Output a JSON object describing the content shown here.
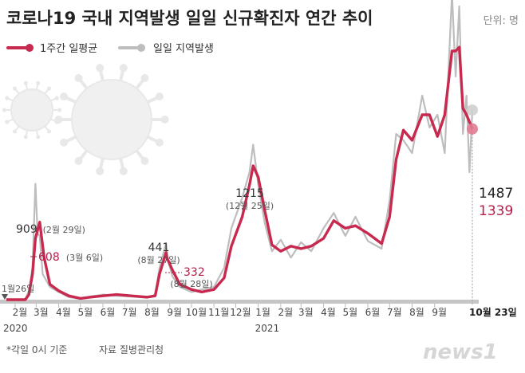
{
  "title": "코로나19 국내 지역발생 일일 신규확진자 연간 추이",
  "unit": "단위: 명",
  "footnote": "*각일 0시 기준",
  "source": "자료 질병관리청",
  "brand": "news1",
  "colors": {
    "avg_line": "#c8294f",
    "daily_line": "#bdbdbd",
    "avg_label": "#b51e47",
    "baseline": "#c6c6c6",
    "virus": "#e6e6e6"
  },
  "chart_data": {
    "type": "line",
    "title": "코로나19 국내 지역발생 일일 신규확진자 연간 추이",
    "x_range": [
      "2020-01-20",
      "2021-10-23"
    ],
    "ylim": [
      0,
      1900
    ],
    "grid": false,
    "legend": {
      "position": "top-left",
      "entries": [
        "1주간 일평균",
        "일일 지역발생"
      ]
    },
    "month_ticks": [
      {
        "label": "2월",
        "date": "2020-02-01"
      },
      {
        "label": "3월",
        "date": "2020-03-01"
      },
      {
        "label": "4월",
        "date": "2020-04-01"
      },
      {
        "label": "5월",
        "date": "2020-05-01"
      },
      {
        "label": "6월",
        "date": "2020-06-01"
      },
      {
        "label": "7월",
        "date": "2020-07-01"
      },
      {
        "label": "8월",
        "date": "2020-08-01"
      },
      {
        "label": "9월",
        "date": "2020-09-01"
      },
      {
        "label": "10월",
        "date": "2020-10-01"
      },
      {
        "label": "11월",
        "date": "2020-11-01"
      },
      {
        "label": "12월",
        "date": "2020-12-01"
      },
      {
        "label": "1월",
        "date": "2021-01-01"
      },
      {
        "label": "2월",
        "date": "2021-02-01"
      },
      {
        "label": "3월",
        "date": "2021-03-01"
      },
      {
        "label": "4월",
        "date": "2021-04-01"
      },
      {
        "label": "5월",
        "date": "2021-05-01"
      },
      {
        "label": "6월",
        "date": "2021-06-01"
      },
      {
        "label": "7월",
        "date": "2021-07-01"
      },
      {
        "label": "8월",
        "date": "2021-08-01"
      },
      {
        "label": "9월",
        "date": "2021-09-01"
      }
    ],
    "year_labels": [
      {
        "label": "2020",
        "date": "2020-01-20"
      },
      {
        "label": "2021",
        "date": "2021-01-01"
      }
    ],
    "end_label": "10월 23일",
    "series": [
      {
        "name": "1주간 일평균",
        "points": [
          [
            "2020-01-20",
            0
          ],
          [
            "2020-02-15",
            0
          ],
          [
            "2020-02-20",
            40
          ],
          [
            "2020-02-25",
            200
          ],
          [
            "2020-02-29",
            480
          ],
          [
            "2020-03-06",
            608
          ],
          [
            "2020-03-12",
            330
          ],
          [
            "2020-03-20",
            120
          ],
          [
            "2020-04-01",
            70
          ],
          [
            "2020-04-15",
            30
          ],
          [
            "2020-05-01",
            10
          ],
          [
            "2020-05-15",
            20
          ],
          [
            "2020-06-01",
            30
          ],
          [
            "2020-06-20",
            40
          ],
          [
            "2020-07-10",
            30
          ],
          [
            "2020-08-01",
            20
          ],
          [
            "2020-08-12",
            30
          ],
          [
            "2020-08-18",
            200
          ],
          [
            "2020-08-27",
            370
          ],
          [
            "2020-08-28",
            332
          ],
          [
            "2020-09-05",
            230
          ],
          [
            "2020-09-15",
            120
          ],
          [
            "2020-10-01",
            80
          ],
          [
            "2020-10-15",
            60
          ],
          [
            "2020-11-01",
            80
          ],
          [
            "2020-11-15",
            170
          ],
          [
            "2020-11-25",
            420
          ],
          [
            "2020-12-10",
            650
          ],
          [
            "2020-12-20",
            900
          ],
          [
            "2020-12-25",
            1050
          ],
          [
            "2021-01-01",
            960
          ],
          [
            "2021-01-10",
            700
          ],
          [
            "2021-01-20",
            430
          ],
          [
            "2021-02-01",
            380
          ],
          [
            "2021-02-15",
            420
          ],
          [
            "2021-03-01",
            400
          ],
          [
            "2021-03-15",
            420
          ],
          [
            "2021-04-01",
            480
          ],
          [
            "2021-04-15",
            620
          ],
          [
            "2021-05-01",
            560
          ],
          [
            "2021-05-15",
            580
          ],
          [
            "2021-06-01",
            520
          ],
          [
            "2021-06-20",
            440
          ],
          [
            "2021-07-01",
            650
          ],
          [
            "2021-07-10",
            1100
          ],
          [
            "2021-07-20",
            1330
          ],
          [
            "2021-08-01",
            1250
          ],
          [
            "2021-08-15",
            1450
          ],
          [
            "2021-08-25",
            1450
          ],
          [
            "2021-09-05",
            1280
          ],
          [
            "2021-09-15",
            1450
          ],
          [
            "2021-09-25",
            1950
          ],
          [
            "2021-09-30",
            1950
          ],
          [
            "2021-10-05",
            1980
          ],
          [
            "2021-10-10",
            1500
          ],
          [
            "2021-10-15",
            1450
          ],
          [
            "2021-10-23",
            1339
          ]
        ]
      },
      {
        "name": "일일 지역발생",
        "points": [
          [
            "2020-01-20",
            0
          ],
          [
            "2020-02-15",
            0
          ],
          [
            "2020-02-20",
            70
          ],
          [
            "2020-02-25",
            250
          ],
          [
            "2020-02-29",
            909
          ],
          [
            "2020-03-03",
            520
          ],
          [
            "2020-03-06",
            500
          ],
          [
            "2020-03-10",
            200
          ],
          [
            "2020-03-20",
            100
          ],
          [
            "2020-04-01",
            60
          ],
          [
            "2020-04-15",
            20
          ],
          [
            "2020-05-01",
            5
          ],
          [
            "2020-05-15",
            25
          ],
          [
            "2020-06-01",
            40
          ],
          [
            "2020-06-20",
            30
          ],
          [
            "2020-07-10",
            25
          ],
          [
            "2020-08-01",
            15
          ],
          [
            "2020-08-12",
            40
          ],
          [
            "2020-08-18",
            250
          ],
          [
            "2020-08-27",
            441
          ],
          [
            "2020-08-30",
            300
          ],
          [
            "2020-09-05",
            180
          ],
          [
            "2020-09-15",
            100
          ],
          [
            "2020-10-01",
            60
          ],
          [
            "2020-10-15",
            80
          ],
          [
            "2020-11-01",
            100
          ],
          [
            "2020-11-15",
            250
          ],
          [
            "2020-11-25",
            560
          ],
          [
            "2020-12-10",
            800
          ],
          [
            "2020-12-20",
            1000
          ],
          [
            "2020-12-25",
            1215
          ],
          [
            "2021-01-01",
            900
          ],
          [
            "2021-01-10",
            600
          ],
          [
            "2021-01-20",
            380
          ],
          [
            "2021-02-01",
            470
          ],
          [
            "2021-02-15",
            330
          ],
          [
            "2021-03-01",
            450
          ],
          [
            "2021-03-15",
            380
          ],
          [
            "2021-04-01",
            560
          ],
          [
            "2021-04-15",
            680
          ],
          [
            "2021-05-01",
            500
          ],
          [
            "2021-05-15",
            650
          ],
          [
            "2021-06-01",
            460
          ],
          [
            "2021-06-20",
            400
          ],
          [
            "2021-07-01",
            780
          ],
          [
            "2021-07-10",
            1300
          ],
          [
            "2021-07-20",
            1250
          ],
          [
            "2021-08-01",
            1150
          ],
          [
            "2021-08-15",
            1600
          ],
          [
            "2021-08-25",
            1350
          ],
          [
            "2021-09-05",
            1450
          ],
          [
            "2021-09-15",
            1150
          ],
          [
            "2021-09-25",
            2400
          ],
          [
            "2021-09-30",
            1750
          ],
          [
            "2021-10-05",
            2300
          ],
          [
            "2021-10-10",
            1300
          ],
          [
            "2021-10-15",
            1600
          ],
          [
            "2021-10-19",
            1000
          ],
          [
            "2021-10-23",
            1487
          ]
        ]
      }
    ],
    "annotations": [
      {
        "value": "1월26일",
        "detail": "",
        "date": "2020-01-26",
        "series": "일일 지역발생"
      },
      {
        "value": "909",
        "detail": "(2월 29일)",
        "date": "2020-02-29",
        "series": "일일 지역발생"
      },
      {
        "value": "608",
        "detail": "(3월 6일)",
        "date": "2020-03-06",
        "series": "1주간 일평균"
      },
      {
        "value": "441",
        "detail": "(8월 27일)",
        "date": "2020-08-27",
        "series": "일일 지역발생"
      },
      {
        "value": "332",
        "detail": "(8월 28일)",
        "date": "2020-08-28",
        "series": "1주간 일평균"
      },
      {
        "value": "1215",
        "detail": "(12월 25일)",
        "date": "2020-12-25",
        "series": "일일 지역발생"
      },
      {
        "value": "1487",
        "detail": "",
        "date": "2021-10-23",
        "series": "일일 지역발생"
      },
      {
        "value": "1339",
        "detail": "",
        "date": "2021-10-23",
        "series": "1주간 일평균"
      }
    ]
  }
}
